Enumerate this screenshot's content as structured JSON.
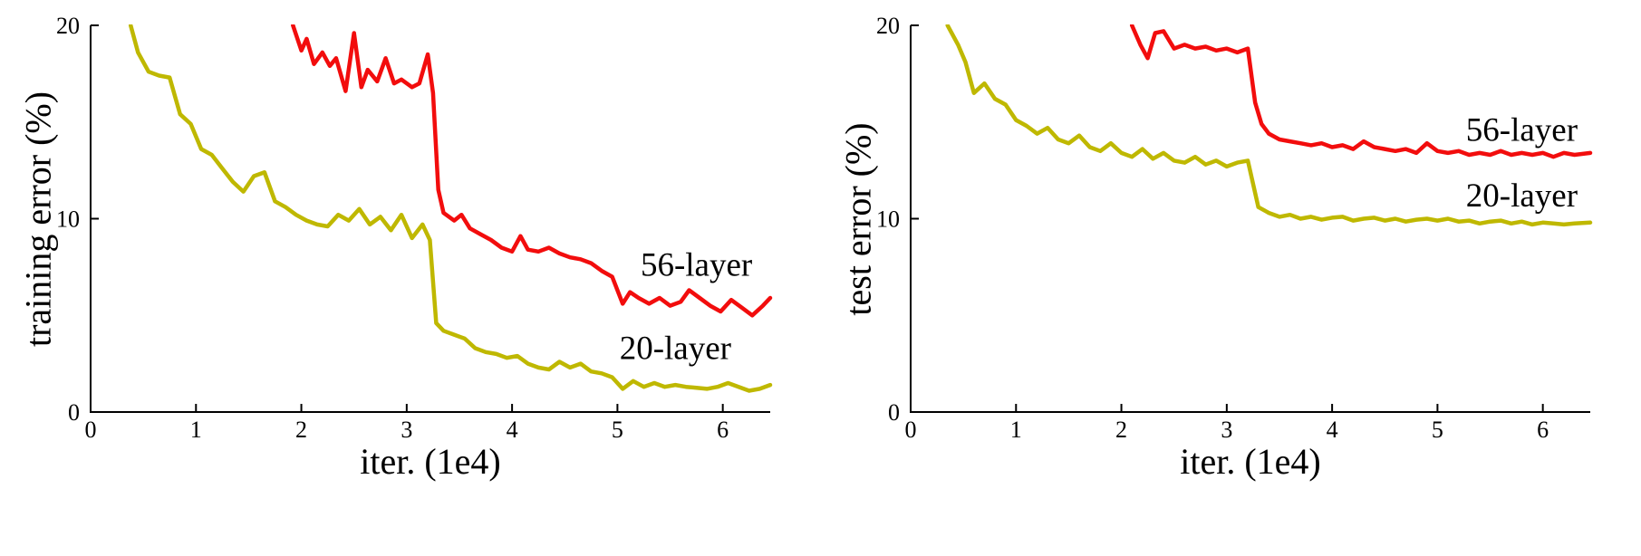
{
  "figure": {
    "background": "#ffffff",
    "description_left": "training error (%) vs iter. (1e4)",
    "description_right": "test error (%) vs iter. (1e4)"
  },
  "colors": {
    "axis": "#000000",
    "text": "#000000",
    "red_56_layer": "#f20d0d",
    "yellow_20_layer": "#bfb800"
  },
  "chart_data": [
    {
      "type": "line",
      "title": "",
      "xlabel": "iter. (1e4)",
      "ylabel": "training error (%)",
      "xlim": [
        0,
        6.45
      ],
      "ylim": [
        0,
        20
      ],
      "xticks": [
        0,
        1,
        2,
        3,
        4,
        5,
        6
      ],
      "yticks": [
        0,
        10,
        20
      ],
      "grid": false,
      "legend_position": "inline-annotations",
      "series": [
        {
          "name": "56-layer",
          "color": "#f20d0d",
          "points": [
            [
              1.92,
              20
            ],
            [
              2.0,
              18.7
            ],
            [
              2.05,
              19.3
            ],
            [
              2.12,
              18.0
            ],
            [
              2.2,
              18.6
            ],
            [
              2.27,
              17.9
            ],
            [
              2.33,
              18.3
            ],
            [
              2.42,
              16.6
            ],
            [
              2.5,
              19.6
            ],
            [
              2.57,
              16.8
            ],
            [
              2.63,
              17.7
            ],
            [
              2.72,
              17.1
            ],
            [
              2.8,
              18.3
            ],
            [
              2.88,
              17.0
            ],
            [
              2.95,
              17.2
            ],
            [
              3.05,
              16.8
            ],
            [
              3.12,
              17.0
            ],
            [
              3.2,
              18.5
            ],
            [
              3.25,
              16.5
            ],
            [
              3.3,
              11.5
            ],
            [
              3.35,
              10.3
            ],
            [
              3.45,
              9.9
            ],
            [
              3.52,
              10.2
            ],
            [
              3.6,
              9.5
            ],
            [
              3.7,
              9.2
            ],
            [
              3.8,
              8.9
            ],
            [
              3.9,
              8.5
            ],
            [
              4.0,
              8.3
            ],
            [
              4.08,
              9.1
            ],
            [
              4.15,
              8.4
            ],
            [
              4.25,
              8.3
            ],
            [
              4.35,
              8.5
            ],
            [
              4.45,
              8.2
            ],
            [
              4.55,
              8.0
            ],
            [
              4.65,
              7.9
            ],
            [
              4.75,
              7.7
            ],
            [
              4.85,
              7.3
            ],
            [
              4.95,
              7.0
            ],
            [
              5.05,
              5.6
            ],
            [
              5.12,
              6.2
            ],
            [
              5.2,
              5.9
            ],
            [
              5.3,
              5.6
            ],
            [
              5.4,
              5.9
            ],
            [
              5.5,
              5.5
            ],
            [
              5.6,
              5.7
            ],
            [
              5.68,
              6.3
            ],
            [
              5.78,
              5.9
            ],
            [
              5.88,
              5.5
            ],
            [
              5.98,
              5.2
            ],
            [
              6.08,
              5.8
            ],
            [
              6.18,
              5.4
            ],
            [
              6.28,
              5.0
            ],
            [
              6.38,
              5.5
            ],
            [
              6.45,
              5.9
            ]
          ]
        },
        {
          "name": "20-layer",
          "color": "#bfb800",
          "points": [
            [
              0.38,
              20
            ],
            [
              0.45,
              18.6
            ],
            [
              0.55,
              17.6
            ],
            [
              0.65,
              17.4
            ],
            [
              0.75,
              17.3
            ],
            [
              0.85,
              15.4
            ],
            [
              0.95,
              14.9
            ],
            [
              1.05,
              13.6
            ],
            [
              1.15,
              13.3
            ],
            [
              1.25,
              12.6
            ],
            [
              1.35,
              11.9
            ],
            [
              1.45,
              11.4
            ],
            [
              1.55,
              12.2
            ],
            [
              1.65,
              12.4
            ],
            [
              1.75,
              10.9
            ],
            [
              1.85,
              10.6
            ],
            [
              1.95,
              10.2
            ],
            [
              2.05,
              9.9
            ],
            [
              2.15,
              9.7
            ],
            [
              2.25,
              9.6
            ],
            [
              2.35,
              10.2
            ],
            [
              2.45,
              9.9
            ],
            [
              2.55,
              10.5
            ],
            [
              2.65,
              9.7
            ],
            [
              2.75,
              10.1
            ],
            [
              2.85,
              9.4
            ],
            [
              2.95,
              10.2
            ],
            [
              3.05,
              9.0
            ],
            [
              3.15,
              9.7
            ],
            [
              3.22,
              8.9
            ],
            [
              3.28,
              4.6
            ],
            [
              3.35,
              4.2
            ],
            [
              3.45,
              4.0
            ],
            [
              3.55,
              3.8
            ],
            [
              3.65,
              3.3
            ],
            [
              3.75,
              3.1
            ],
            [
              3.85,
              3.0
            ],
            [
              3.95,
              2.8
            ],
            [
              4.05,
              2.9
            ],
            [
              4.15,
              2.5
            ],
            [
              4.25,
              2.3
            ],
            [
              4.35,
              2.2
            ],
            [
              4.45,
              2.6
            ],
            [
              4.55,
              2.3
            ],
            [
              4.65,
              2.5
            ],
            [
              4.75,
              2.1
            ],
            [
              4.85,
              2.0
            ],
            [
              4.95,
              1.8
            ],
            [
              5.05,
              1.2
            ],
            [
              5.15,
              1.6
            ],
            [
              5.25,
              1.3
            ],
            [
              5.35,
              1.5
            ],
            [
              5.45,
              1.3
            ],
            [
              5.55,
              1.4
            ],
            [
              5.65,
              1.3
            ],
            [
              5.75,
              1.25
            ],
            [
              5.85,
              1.2
            ],
            [
              5.95,
              1.3
            ],
            [
              6.05,
              1.5
            ],
            [
              6.15,
              1.3
            ],
            [
              6.25,
              1.1
            ],
            [
              6.35,
              1.2
            ],
            [
              6.45,
              1.4
            ]
          ]
        }
      ],
      "annotations": [
        {
          "text": "56-layer",
          "x": 5.75,
          "y": 7.6
        },
        {
          "text": "20-layer",
          "x": 5.55,
          "y": 3.3
        }
      ]
    },
    {
      "type": "line",
      "title": "",
      "xlabel": "iter. (1e4)",
      "ylabel": "test error (%)",
      "xlim": [
        0,
        6.45
      ],
      "ylim": [
        0,
        20
      ],
      "xticks": [
        0,
        1,
        2,
        3,
        4,
        5,
        6
      ],
      "yticks": [
        0,
        10,
        20
      ],
      "grid": false,
      "legend_position": "inline-annotations",
      "series": [
        {
          "name": "56-layer",
          "color": "#f20d0d",
          "points": [
            [
              2.1,
              20
            ],
            [
              2.18,
              19.0
            ],
            [
              2.25,
              18.3
            ],
            [
              2.32,
              19.6
            ],
            [
              2.4,
              19.7
            ],
            [
              2.5,
              18.8
            ],
            [
              2.6,
              19.0
            ],
            [
              2.7,
              18.8
            ],
            [
              2.8,
              18.9
            ],
            [
              2.9,
              18.7
            ],
            [
              3.0,
              18.8
            ],
            [
              3.1,
              18.6
            ],
            [
              3.2,
              18.8
            ],
            [
              3.27,
              16.0
            ],
            [
              3.33,
              14.9
            ],
            [
              3.4,
              14.4
            ],
            [
              3.5,
              14.1
            ],
            [
              3.6,
              14.0
            ],
            [
              3.7,
              13.9
            ],
            [
              3.8,
              13.8
            ],
            [
              3.9,
              13.9
            ],
            [
              4.0,
              13.7
            ],
            [
              4.1,
              13.8
            ],
            [
              4.2,
              13.6
            ],
            [
              4.3,
              14.0
            ],
            [
              4.4,
              13.7
            ],
            [
              4.5,
              13.6
            ],
            [
              4.6,
              13.5
            ],
            [
              4.7,
              13.6
            ],
            [
              4.8,
              13.4
            ],
            [
              4.9,
              13.9
            ],
            [
              5.0,
              13.5
            ],
            [
              5.1,
              13.4
            ],
            [
              5.2,
              13.5
            ],
            [
              5.3,
              13.3
            ],
            [
              5.4,
              13.4
            ],
            [
              5.5,
              13.3
            ],
            [
              5.6,
              13.5
            ],
            [
              5.7,
              13.3
            ],
            [
              5.8,
              13.4
            ],
            [
              5.9,
              13.3
            ],
            [
              6.0,
              13.4
            ],
            [
              6.1,
              13.2
            ],
            [
              6.2,
              13.4
            ],
            [
              6.3,
              13.3
            ],
            [
              6.45,
              13.4
            ]
          ]
        },
        {
          "name": "20-layer",
          "color": "#bfb800",
          "points": [
            [
              0.35,
              20
            ],
            [
              0.45,
              19.0
            ],
            [
              0.52,
              18.1
            ],
            [
              0.6,
              16.5
            ],
            [
              0.7,
              17.0
            ],
            [
              0.8,
              16.2
            ],
            [
              0.9,
              15.9
            ],
            [
              1.0,
              15.1
            ],
            [
              1.1,
              14.8
            ],
            [
              1.2,
              14.4
            ],
            [
              1.3,
              14.7
            ],
            [
              1.4,
              14.1
            ],
            [
              1.5,
              13.9
            ],
            [
              1.6,
              14.3
            ],
            [
              1.7,
              13.7
            ],
            [
              1.8,
              13.5
            ],
            [
              1.9,
              13.9
            ],
            [
              2.0,
              13.4
            ],
            [
              2.1,
              13.2
            ],
            [
              2.2,
              13.6
            ],
            [
              2.3,
              13.1
            ],
            [
              2.4,
              13.4
            ],
            [
              2.5,
              13.0
            ],
            [
              2.6,
              12.9
            ],
            [
              2.7,
              13.2
            ],
            [
              2.8,
              12.8
            ],
            [
              2.9,
              13.0
            ],
            [
              3.0,
              12.7
            ],
            [
              3.1,
              12.9
            ],
            [
              3.2,
              13.0
            ],
            [
              3.3,
              10.6
            ],
            [
              3.4,
              10.3
            ],
            [
              3.5,
              10.1
            ],
            [
              3.6,
              10.2
            ],
            [
              3.7,
              10.0
            ],
            [
              3.8,
              10.1
            ],
            [
              3.9,
              9.95
            ],
            [
              4.0,
              10.05
            ],
            [
              4.1,
              10.1
            ],
            [
              4.2,
              9.9
            ],
            [
              4.3,
              10.0
            ],
            [
              4.4,
              10.05
            ],
            [
              4.5,
              9.9
            ],
            [
              4.6,
              10.0
            ],
            [
              4.7,
              9.85
            ],
            [
              4.8,
              9.95
            ],
            [
              4.9,
              10.0
            ],
            [
              5.0,
              9.9
            ],
            [
              5.1,
              10.0
            ],
            [
              5.2,
              9.85
            ],
            [
              5.3,
              9.9
            ],
            [
              5.4,
              9.75
            ],
            [
              5.5,
              9.85
            ],
            [
              5.6,
              9.9
            ],
            [
              5.7,
              9.75
            ],
            [
              5.8,
              9.85
            ],
            [
              5.9,
              9.7
            ],
            [
              6.0,
              9.8
            ],
            [
              6.1,
              9.75
            ],
            [
              6.2,
              9.7
            ],
            [
              6.3,
              9.75
            ],
            [
              6.45,
              9.8
            ]
          ]
        }
      ],
      "annotations": [
        {
          "text": "56-layer",
          "x": 5.8,
          "y": 14.6
        },
        {
          "text": "20-layer",
          "x": 5.8,
          "y": 11.2
        }
      ]
    }
  ]
}
